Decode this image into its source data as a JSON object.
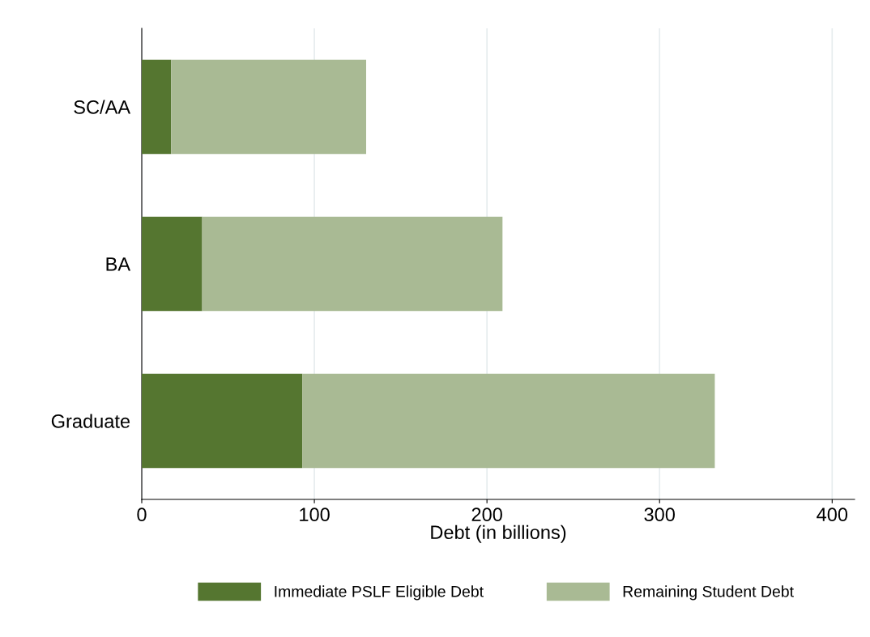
{
  "chart_data": {
    "type": "bar",
    "orientation": "horizontal",
    "stacked": true,
    "categories": [
      "SC/AA",
      "BA",
      "Graduate"
    ],
    "series": [
      {
        "name": "Immediate PSLF Eligible Debt",
        "color": "#557630",
        "values": [
          17,
          35,
          93
        ]
      },
      {
        "name": "Remaining Student Debt",
        "color": "#a9ba94",
        "values": [
          113,
          174,
          239
        ]
      }
    ],
    "xlabel": "Debt (in billions)",
    "xlim": [
      0,
      413
    ],
    "xticks": [
      0,
      100,
      200,
      300,
      400
    ],
    "grid": "x",
    "legend": "bottom"
  }
}
